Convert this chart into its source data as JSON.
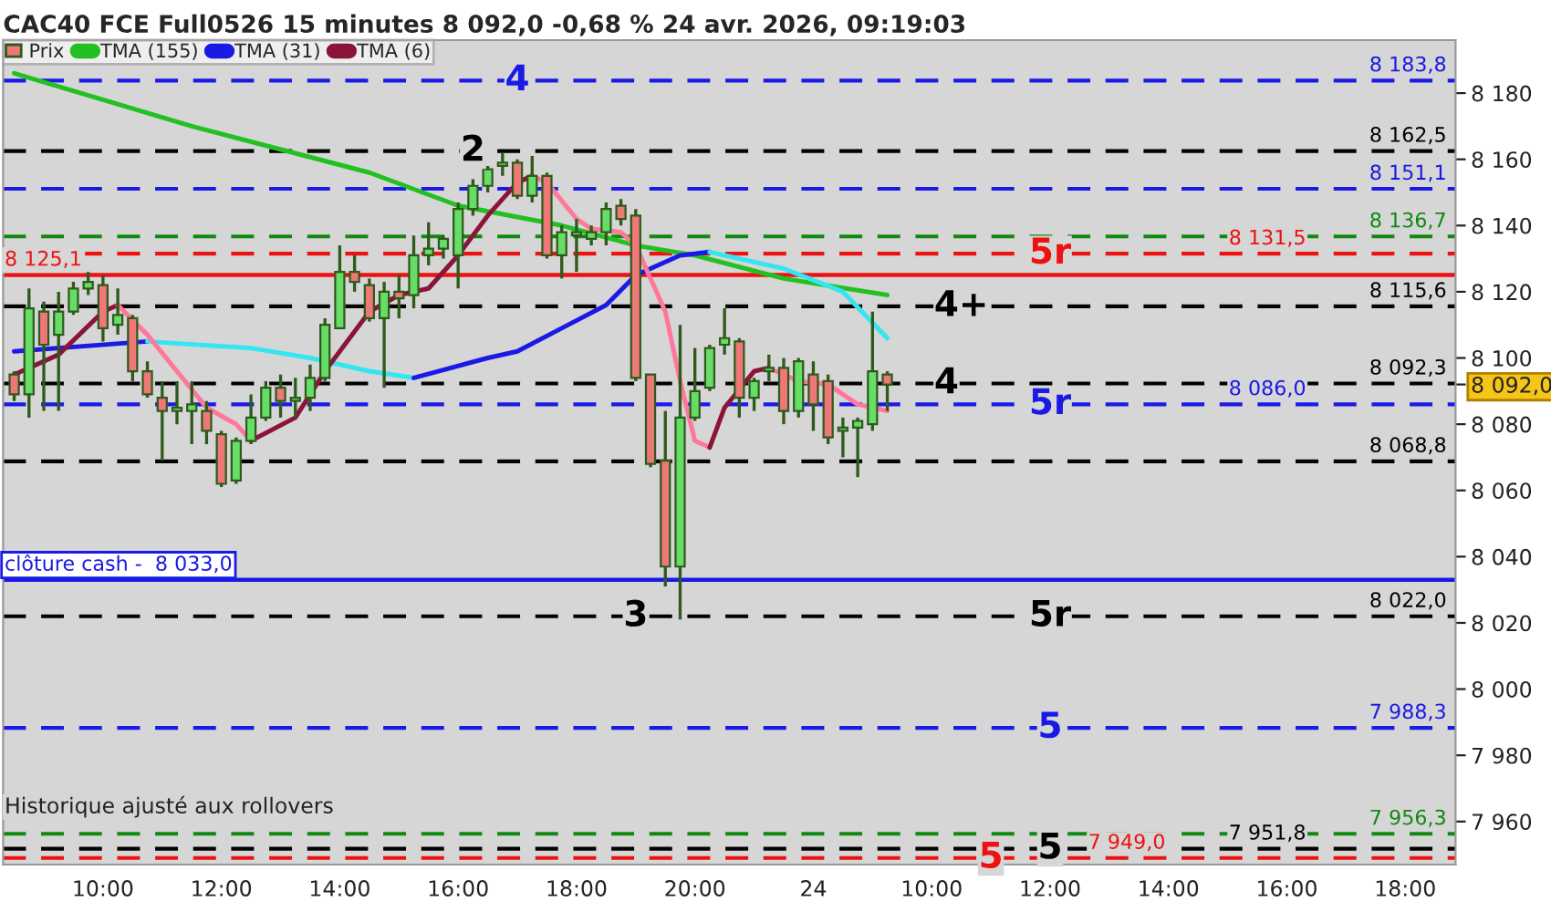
{
  "chart_data": {
    "type": "candlestick",
    "title": "CAC40 FCE Full0526 15 minutes 8 092,0 -0,68 % 24 avr. 2026, 09:19:03",
    "categories": [
      null,
      null,
      null,
      null,
      null,
      null,
      "10:00",
      null,
      null,
      null,
      null,
      null,
      null,
      null,
      "12:00",
      null,
      null,
      null,
      null,
      null,
      null,
      null,
      "14:00",
      null,
      null,
      null,
      null,
      null,
      null,
      null,
      "16:00",
      null,
      null,
      null,
      null,
      null,
      null,
      null,
      "18:00",
      null,
      null,
      null,
      null,
      null,
      null,
      null,
      "20:00",
      null,
      null,
      null,
      null,
      null,
      null,
      null,
      "24",
      null,
      null,
      null,
      null,
      null,
      null,
      null,
      "10:00",
      null,
      null,
      null,
      null,
      null,
      null,
      null,
      "12:00",
      null,
      null,
      null,
      null,
      null,
      null,
      null,
      "14:00",
      null,
      null,
      null,
      null,
      null,
      null,
      null,
      "16:00",
      null,
      null,
      null,
      null,
      null,
      null,
      null,
      "18:00",
      null,
      null,
      null
    ],
    "series": [
      {
        "name": "Prix",
        "colors": [
          "#ee7777",
          "#66dd66",
          "#ee7777",
          "#66dd66",
          "#66dd66",
          "#66dd66",
          "#ee7777",
          "#66dd66",
          "#ee7777",
          "#ee7777",
          "#ee7777",
          "#66dd66",
          "#66dd66",
          "#ee7777",
          "#ee7777",
          "#66dd66",
          "#66dd66",
          "#66dd66",
          "#ee7777",
          "#66dd66",
          "#66dd66",
          "#66dd66",
          "#66dd66",
          "#ee7777",
          "#ee7777",
          "#66dd66",
          "#ee7777",
          "#66dd66",
          "#66dd66",
          "#66dd66",
          "#66dd66",
          "#66dd66",
          "#66dd66",
          "#66dd66",
          "#ee7777",
          "#66dd66",
          "#ee7777",
          "#66dd66",
          "#66dd66",
          "#66dd66",
          "#66dd66",
          "#ee7777",
          "#ee7777",
          "#ee7777",
          "#ee7777",
          "#66dd66",
          "#66dd66",
          "#66dd66",
          "#66dd66",
          "#ee7777",
          "#66dd66",
          "#66dd66",
          "#ee7777",
          "#66dd66",
          "#ee7777",
          "#ee7777",
          "#66dd66",
          "#66dd66",
          "#66dd66",
          "#ee7777",
          null,
          null,
          null,
          null,
          null,
          null,
          null,
          null,
          null,
          null,
          null,
          null,
          null,
          null,
          null,
          null,
          null,
          null,
          null,
          null,
          null,
          null,
          null,
          null,
          null,
          null,
          null,
          null,
          null,
          null,
          null,
          null,
          null,
          null,
          null,
          null,
          null,
          null
        ],
        "ohlc": [
          [
            8095,
            8096,
            8087,
            8089
          ],
          [
            8089,
            8121,
            8082,
            8115
          ],
          [
            8114,
            8117,
            8084,
            8104
          ],
          [
            8107,
            8120,
            8084,
            8114
          ],
          [
            8114,
            8123,
            8113,
            8121
          ],
          [
            8121,
            8126,
            8119,
            8123
          ],
          [
            8122,
            8125,
            8105,
            8109
          ],
          [
            8110,
            8121,
            8107,
            8113
          ],
          [
            8112,
            8113,
            8093,
            8096
          ],
          [
            8096,
            8099,
            8088,
            8089
          ],
          [
            8088,
            8093,
            8069,
            8084
          ],
          [
            8084,
            8093,
            8080,
            8085
          ],
          [
            8084,
            8093,
            8074,
            8086
          ],
          [
            8084,
            8087,
            8074,
            8078
          ],
          [
            8077,
            8078,
            8061,
            8062
          ],
          [
            8063,
            8076,
            8062,
            8075
          ],
          [
            8075,
            8089,
            8074,
            8082
          ],
          [
            8082,
            8093,
            8081,
            8091
          ],
          [
            8091,
            8095,
            8082,
            8087
          ],
          [
            8087,
            8094,
            8082,
            8088
          ],
          [
            8088,
            8098,
            8084,
            8094
          ],
          [
            8094,
            8112,
            8093,
            8110
          ],
          [
            8109,
            8134,
            8109,
            8126
          ],
          [
            8126,
            8131,
            8120,
            8123
          ],
          [
            8122,
            8124,
            8111,
            8112
          ],
          [
            8112,
            8123,
            8091,
            8120
          ],
          [
            8120,
            8125,
            8112,
            8118
          ],
          [
            8119,
            8137,
            8115,
            8131
          ],
          [
            8131,
            8141,
            8128,
            8133
          ],
          [
            8133,
            8137,
            8130,
            8136
          ],
          [
            8131,
            8147,
            8121,
            8145
          ],
          [
            8145,
            8154,
            8143,
            8152
          ],
          [
            8152,
            8158,
            8150,
            8157
          ],
          [
            8158,
            8162,
            8155,
            8159
          ],
          [
            8159,
            8160,
            8148,
            8149
          ],
          [
            8149,
            8161,
            8147,
            8155
          ],
          [
            8155,
            8156,
            8130,
            8131
          ],
          [
            8131,
            8140,
            8124,
            8138
          ],
          [
            8137,
            8142,
            8126,
            8138
          ],
          [
            8136,
            8140,
            8134,
            8138
          ],
          [
            8138,
            8147,
            8134,
            8145
          ],
          [
            8146,
            8148,
            8140,
            8142
          ],
          [
            8143,
            8145,
            8093,
            8094
          ],
          [
            8095,
            8095,
            8067,
            8068
          ],
          [
            8069,
            8084,
            8031,
            8037
          ],
          [
            8037,
            8110,
            8021,
            8082
          ],
          [
            8082,
            8103,
            8081,
            8090
          ],
          [
            8091,
            8104,
            8090,
            8103
          ],
          [
            8104,
            8115,
            8101,
            8106
          ],
          [
            8105,
            8106,
            8082,
            8088
          ],
          [
            8088,
            8094,
            8084,
            8093
          ],
          [
            8096,
            8101,
            8093,
            8097
          ],
          [
            8097,
            8100,
            8080,
            8084
          ],
          [
            8084,
            8100,
            8082,
            8099
          ],
          [
            8095,
            8099,
            8078,
            8086
          ],
          [
            8093,
            8095,
            8074,
            8076
          ],
          [
            8078,
            8082,
            8070,
            8079
          ],
          [
            8079,
            8082,
            8064,
            8081
          ],
          [
            8080,
            8114,
            8078,
            8096
          ],
          [
            8095,
            8096,
            8084,
            8092
          ],
          null,
          null,
          null,
          null,
          null,
          null,
          null,
          null,
          null,
          null,
          null,
          null,
          null,
          null,
          null,
          null,
          null,
          null,
          null,
          null,
          null,
          null,
          null,
          null,
          null,
          null,
          null,
          null,
          null,
          null,
          null,
          null,
          null,
          null,
          null,
          null,
          null,
          null
        ]
      },
      {
        "name": "TMA (155)",
        "type": "line",
        "color": "#22c022",
        "values": [
          8186,
          null,
          null,
          null,
          null,
          null,
          null,
          null,
          null,
          null,
          null,
          null,
          8170,
          null,
          null,
          null,
          null,
          null,
          null,
          null,
          null,
          null,
          null,
          null,
          8156,
          null,
          null,
          null,
          null,
          null,
          8146,
          null,
          null,
          null,
          null,
          null,
          null,
          8140,
          null,
          null,
          null,
          null,
          8134,
          null,
          null,
          null,
          8131,
          null,
          null,
          null,
          null,
          null,
          8124,
          null,
          null,
          null,
          null,
          null,
          null,
          8119,
          null,
          null,
          null,
          null,
          null,
          null,
          null,
          null,
          null,
          null,
          null,
          null,
          null,
          null,
          null,
          null,
          null,
          null,
          null,
          null,
          null,
          null,
          null,
          null,
          null,
          null,
          null,
          null,
          null,
          null,
          null,
          null,
          null,
          null,
          null,
          null,
          null,
          null
        ]
      },
      {
        "name": "TMA (31)",
        "type": "line",
        "color": "#1a1ae6",
        "values": [
          8102,
          null,
          null,
          null,
          null,
          null,
          null,
          null,
          null,
          8105,
          null,
          null,
          null,
          null,
          null,
          null,
          null,
          null,
          null,
          null,
          null,
          null,
          null,
          null,
          null,
          null,
          null,
          null,
          null,
          null,
          null,
          null,
          null,
          null,
          null,
          null,
          null,
          null,
          null,
          null,
          null,
          null,
          null,
          null,
          null,
          null,
          null,
          null,
          null,
          null,
          null,
          null,
          null,
          null,
          null,
          null,
          null,
          null,
          null,
          null,
          null,
          null,
          null,
          null,
          null,
          null,
          null,
          null,
          null,
          null,
          null,
          null,
          null,
          null,
          null,
          null,
          null,
          null,
          null,
          null,
          null,
          null,
          null,
          null,
          null,
          null,
          null,
          null,
          null,
          null,
          null,
          null,
          null,
          null,
          null,
          null,
          null,
          null
        ]
      },
      {
        "type": "line",
        "color": "#33e6f0",
        "values": [
          null,
          null,
          null,
          null,
          null,
          null,
          null,
          null,
          null,
          8105,
          null,
          null,
          null,
          null,
          null,
          null,
          8103,
          null,
          null,
          null,
          8100,
          null,
          null,
          null,
          8096,
          null,
          null,
          8094,
          null,
          null,
          null,
          null,
          null,
          null,
          null,
          null,
          null,
          null,
          null,
          null,
          null,
          null,
          null,
          null,
          null,
          null,
          null,
          null,
          null,
          null,
          null,
          null,
          null,
          null,
          null,
          null,
          null,
          null,
          null,
          null,
          null,
          null,
          null,
          null,
          null,
          null,
          null,
          null,
          null,
          null,
          null,
          null,
          null,
          null,
          null,
          null,
          null,
          null,
          null,
          null,
          null,
          null,
          null,
          null,
          null,
          null,
          null,
          null,
          null,
          null,
          null,
          null,
          null,
          null,
          null,
          null,
          null,
          null
        ]
      },
      {
        "type": "line",
        "color": "#1a1ae6",
        "values": [
          null,
          null,
          null,
          null,
          null,
          null,
          null,
          null,
          null,
          null,
          null,
          null,
          null,
          null,
          null,
          null,
          null,
          null,
          null,
          null,
          null,
          null,
          null,
          null,
          null,
          null,
          null,
          8094,
          null,
          null,
          null,
          null,
          8100,
          null,
          8102,
          null,
          null,
          8109,
          null,
          null,
          8116,
          null,
          8125,
          null,
          null,
          8131,
          null,
          8132,
          null,
          null,
          null,
          null,
          null,
          null,
          null,
          null,
          null,
          null,
          null,
          null,
          null,
          null,
          null,
          null,
          null,
          null,
          null,
          null,
          null,
          null,
          null,
          null,
          null,
          null,
          null,
          null,
          null,
          null,
          null,
          null,
          null,
          null,
          null,
          null,
          null,
          null,
          null,
          null,
          null,
          null,
          null,
          null,
          null,
          null,
          null,
          null,
          null,
          null
        ]
      },
      {
        "type": "line",
        "color": "#33e6f0",
        "values": [
          null,
          null,
          null,
          null,
          null,
          null,
          null,
          null,
          null,
          null,
          null,
          null,
          null,
          null,
          null,
          null,
          null,
          null,
          null,
          null,
          null,
          null,
          null,
          null,
          null,
          null,
          null,
          null,
          null,
          null,
          null,
          null,
          null,
          null,
          null,
          null,
          null,
          null,
          null,
          null,
          null,
          null,
          null,
          null,
          null,
          null,
          null,
          8132,
          null,
          null,
          null,
          null,
          8127,
          null,
          null,
          null,
          8120,
          null,
          null,
          8106,
          null,
          null,
          null,
          null,
          null,
          null,
          null,
          null,
          null,
          null,
          null,
          null,
          null,
          null,
          null,
          null,
          null,
          null,
          null,
          null,
          null,
          null,
          null,
          null,
          null,
          null,
          null,
          null,
          null,
          null,
          null,
          null,
          null,
          null,
          null,
          null,
          null,
          null
        ]
      },
      {
        "name": "TMA (6)",
        "type": "line",
        "color": "#8b1538",
        "values": [
          8095,
          null,
          null,
          8101,
          null,
          null,
          8114,
          8116,
          null,
          null,
          null,
          null,
          null,
          null,
          null,
          null,
          null,
          null,
          null,
          null,
          null,
          null,
          null,
          null,
          null,
          null,
          null,
          null,
          null,
          null,
          null,
          null,
          null,
          null,
          null,
          null,
          null,
          null,
          null,
          null,
          null,
          null,
          null,
          null,
          null,
          null,
          null,
          null,
          null,
          null,
          null,
          null,
          null,
          null,
          null,
          null,
          null,
          null,
          null,
          null,
          null,
          null,
          null,
          null,
          null,
          null,
          null,
          null,
          null,
          null,
          null,
          null,
          null,
          null,
          null,
          null,
          null,
          null,
          null,
          null,
          null,
          null,
          null,
          null,
          null,
          null,
          null,
          null,
          null,
          null,
          null,
          null,
          null,
          null,
          null,
          null,
          null,
          null
        ]
      },
      {
        "type": "line",
        "color": "#ff7799",
        "values": [
          null,
          null,
          null,
          null,
          null,
          null,
          null,
          8116,
          null,
          8107,
          null,
          8096,
          null,
          8085,
          null,
          8080,
          8075,
          null,
          null,
          null,
          null,
          null,
          null,
          null,
          null,
          null,
          null,
          null,
          null,
          null,
          null,
          null,
          null,
          null,
          null,
          null,
          null,
          null,
          null,
          null,
          null,
          null,
          null,
          null,
          null,
          null,
          null,
          null,
          null,
          null,
          null,
          null,
          null,
          null,
          null,
          null,
          null,
          null,
          null,
          null,
          null,
          null,
          null,
          null,
          null,
          null,
          null,
          null,
          null,
          null,
          null,
          null,
          null,
          null,
          null,
          null,
          null,
          null,
          null,
          null,
          null,
          null,
          null,
          null,
          null,
          null,
          null,
          null,
          null,
          null,
          null,
          null,
          null,
          null,
          null,
          null,
          null,
          null
        ]
      },
      {
        "type": "line",
        "color": "#8b1538",
        "values": [
          null,
          null,
          null,
          null,
          null,
          null,
          null,
          null,
          null,
          null,
          null,
          null,
          null,
          null,
          null,
          null,
          8075,
          null,
          null,
          8082,
          null,
          8096,
          null,
          null,
          8114,
          null,
          8119,
          null,
          8121,
          null,
          8131,
          null,
          8143,
          null,
          8153,
          8155,
          null,
          null,
          null,
          null,
          null,
          null,
          null,
          null,
          null,
          null,
          null,
          null,
          null,
          null,
          null,
          null,
          null,
          null,
          null,
          null,
          null,
          null,
          null,
          null,
          null,
          null,
          null,
          null,
          null,
          null,
          null,
          null,
          null,
          null,
          null,
          null,
          null,
          null,
          null,
          null,
          null,
          null,
          null,
          null,
          null,
          null,
          null,
          null,
          null,
          null,
          null,
          null,
          null,
          null,
          null,
          null,
          null,
          null,
          null,
          null,
          null,
          null
        ]
      },
      {
        "type": "line",
        "color": "#ff7799",
        "values": [
          null,
          null,
          null,
          null,
          null,
          null,
          null,
          null,
          null,
          null,
          null,
          null,
          null,
          null,
          null,
          null,
          null,
          null,
          null,
          null,
          null,
          null,
          null,
          null,
          null,
          null,
          null,
          null,
          null,
          null,
          null,
          null,
          null,
          null,
          null,
          8155,
          8153,
          null,
          8142,
          8139,
          null,
          8138,
          8134,
          null,
          8114,
          8093,
          8075,
          8073,
          null,
          null,
          null,
          null,
          null,
          null,
          null,
          null,
          null,
          null,
          null,
          null,
          null,
          null,
          null,
          null,
          null,
          null,
          null,
          null,
          null,
          null,
          null,
          null,
          null,
          null,
          null,
          null,
          null,
          null,
          null,
          null,
          null,
          null,
          null,
          null,
          null,
          null,
          null,
          null,
          null,
          null,
          null,
          null,
          null,
          null,
          null,
          null,
          null,
          null
        ]
      },
      {
        "type": "line",
        "color": "#8b1538",
        "values": [
          null,
          null,
          null,
          null,
          null,
          null,
          null,
          null,
          null,
          null,
          null,
          null,
          null,
          null,
          null,
          null,
          null,
          null,
          null,
          null,
          null,
          null,
          null,
          null,
          null,
          null,
          null,
          null,
          null,
          null,
          null,
          null,
          null,
          null,
          null,
          null,
          null,
          null,
          null,
          null,
          null,
          null,
          null,
          null,
          null,
          null,
          null,
          8073,
          8085,
          null,
          8096,
          8097,
          null,
          null,
          null,
          null,
          null,
          null,
          null,
          null,
          null,
          null,
          null,
          null,
          null,
          null,
          null,
          null,
          null,
          null,
          null,
          null,
          null,
          null,
          null,
          null,
          null,
          null,
          null,
          null,
          null,
          null,
          null,
          null,
          null,
          null,
          null,
          null,
          null,
          null,
          null,
          null,
          null,
          null,
          null,
          null,
          null,
          null
        ]
      },
      {
        "type": "line",
        "color": "#ff7799",
        "values": [
          null,
          null,
          null,
          null,
          null,
          null,
          null,
          null,
          null,
          null,
          null,
          null,
          null,
          null,
          null,
          null,
          null,
          null,
          null,
          null,
          null,
          null,
          null,
          null,
          null,
          null,
          null,
          null,
          null,
          null,
          null,
          null,
          null,
          null,
          null,
          null,
          null,
          null,
          null,
          null,
          null,
          null,
          null,
          null,
          null,
          null,
          null,
          null,
          null,
          null,
          null,
          8097,
          null,
          8093,
          null,
          8092,
          null,
          8086,
          null,
          8084,
          null,
          null,
          null,
          null,
          null,
          null,
          null,
          null,
          null,
          null,
          null,
          null,
          null,
          null,
          null,
          null,
          null,
          null,
          null,
          null,
          null,
          null,
          null,
          null,
          null,
          null,
          null,
          null,
          null,
          null,
          null,
          null,
          null,
          null,
          null,
          null,
          null,
          null
        ]
      }
    ],
    "ylim": [
      7947,
      8196
    ],
    "yticks": [
      {
        "value": 7960,
        "label": "7 960"
      },
      {
        "value": 7980,
        "label": "7 980"
      },
      {
        "value": 8000,
        "label": "8 000"
      },
      {
        "value": 8020,
        "label": "8 020"
      },
      {
        "value": 8040,
        "label": "8 040"
      },
      {
        "value": 8060,
        "label": "8 060"
      },
      {
        "value": 8080,
        "label": "8 080"
      },
      {
        "value": 8092,
        "label": "8 092,0"
      },
      {
        "value": 8100,
        "label": "8 100"
      },
      {
        "value": 8120,
        "label": "8 120"
      },
      {
        "value": 8140,
        "label": "8 140"
      },
      {
        "value": 8160,
        "label": "8 160"
      },
      {
        "value": 8180,
        "label": "8 180"
      }
    ],
    "ref_lines": [
      {
        "axis": "y",
        "value": 8183.8,
        "label": "8 183,8",
        "color": "#1a1ae6",
        "line_style": "dashed"
      },
      {
        "axis": "y",
        "value": 8162.5,
        "label": "8 162,5",
        "color": "#000000",
        "line_style": "dashed"
      },
      {
        "axis": "y",
        "value": 8151.1,
        "label": "8 151,1",
        "color": "#1a1ae6",
        "line_style": "dashed"
      },
      {
        "axis": "y",
        "value": 8136.7,
        "label": "8 136,7",
        "color": "#118811",
        "line_style": "dashed"
      },
      {
        "axis": "y",
        "value": 8131.5,
        "label": "8 131,5",
        "color": "#ee1111",
        "line_style": "dashed"
      },
      {
        "axis": "y",
        "value": 8125.1,
        "label": "8 125,1",
        "color": "#ee1111",
        "line_style": "solid"
      },
      {
        "axis": "y",
        "value": 8115.6,
        "label": "8 115,6",
        "color": "#000000",
        "line_style": "dashed"
      },
      {
        "axis": "y",
        "value": 8092.3,
        "label": "8 092,3",
        "color": "#000000",
        "line_style": "dashed"
      },
      {
        "axis": "y",
        "value": 8086.0,
        "label": "8 086,0",
        "color": "#1a1ae6",
        "line_style": "dashed"
      },
      {
        "axis": "y",
        "value": 8068.8,
        "label": "8 068,8",
        "color": "#000000",
        "line_style": "dashed"
      },
      {
        "axis": "y",
        "value": 8033.0,
        "label": "clôture cash -  8 033,0",
        "color": "#1a1ae6",
        "line_style": "solid"
      },
      {
        "axis": "y",
        "value": 8022.0,
        "label": "8 022,0",
        "color": "#000000",
        "line_style": "dashed"
      },
      {
        "axis": "y",
        "value": 7988.3,
        "label": "7 988,3",
        "color": "#1a1ae6",
        "line_style": "dashed"
      },
      {
        "axis": "y",
        "value": 7956.3,
        "label": "7 956,3",
        "color": "#118811",
        "line_style": "dashed"
      },
      {
        "axis": "y",
        "value": 7951.8,
        "label": "7 951,8",
        "color": "#000000",
        "line_style": "dashed"
      },
      {
        "axis": "y",
        "value": 7949.0,
        "label": "7 949,0",
        "color": "#ee1111",
        "line_style": "dashed"
      }
    ],
    "annotations": [
      {
        "text": "4",
        "y": 8183.8
      },
      {
        "text": "2",
        "y": 8162.5
      },
      {
        "text": "5r",
        "y": 8131.5
      },
      {
        "text": "4+",
        "y": 8115.6
      },
      {
        "text": "4",
        "y": 8092.3
      },
      {
        "text": "5r",
        "y": 8086.0
      },
      {
        "text": "3",
        "y": 8022.0
      },
      {
        "text": "5r",
        "y": 8022.0
      },
      {
        "text": "5",
        "y": 7988.3
      },
      {
        "text": "5",
        "y": 7949.0
      },
      {
        "text": "5",
        "y": 7951.8
      },
      "Historique ajusté aux rollovers"
    ],
    "legend": "top left"
  }
}
